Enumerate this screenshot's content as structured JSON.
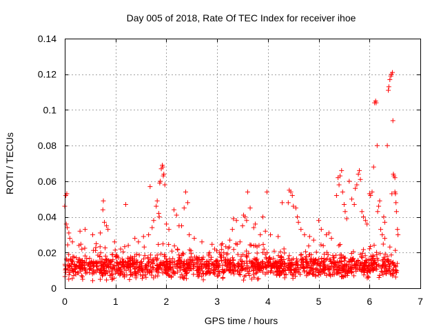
{
  "chart_data": {
    "type": "scatter",
    "title": "Day 005 of 2018, Rate Of TEC Index for receiver ihoe",
    "xlabel": "GPS time / hours",
    "ylabel": "ROTI / TECUs",
    "xlim": [
      0,
      7
    ],
    "ylim": [
      0,
      0.14
    ],
    "grid": true,
    "legend": "none",
    "marker": "plus",
    "color": "#ff0000",
    "x_ticks": [
      "0",
      "1",
      "2",
      "3",
      "4",
      "5",
      "6",
      "7"
    ],
    "y_ticks": [
      "0",
      "0.02",
      "0.04",
      "0.06",
      "0.08",
      "0.1",
      "0.12",
      "0.14"
    ],
    "series": [
      {
        "name": "ROTI",
        "points": [
          [
            0.0,
            0.046
          ],
          [
            0.02,
            0.052
          ],
          [
            0.04,
            0.053
          ],
          [
            0.03,
            0.036
          ],
          [
            0.05,
            0.034
          ],
          [
            0.08,
            0.031
          ],
          [
            0.1,
            0.028
          ],
          [
            0.15,
            0.026
          ],
          [
            0.28,
            0.024
          ],
          [
            0.3,
            0.032
          ],
          [
            0.4,
            0.033
          ],
          [
            0.55,
            0.03
          ],
          [
            0.62,
            0.025
          ],
          [
            0.7,
            0.031
          ],
          [
            0.75,
            0.044
          ],
          [
            0.76,
            0.049
          ],
          [
            0.78,
            0.037
          ],
          [
            0.82,
            0.035
          ],
          [
            0.85,
            0.033
          ],
          [
            0.98,
            0.026
          ],
          [
            1.1,
            0.022
          ],
          [
            1.2,
            0.047
          ],
          [
            1.25,
            0.024
          ],
          [
            1.38,
            0.028
          ],
          [
            1.45,
            0.026
          ],
          [
            1.55,
            0.029
          ],
          [
            1.65,
            0.03
          ],
          [
            1.68,
            0.057
          ],
          [
            1.72,
            0.034
          ],
          [
            1.75,
            0.038
          ],
          [
            1.8,
            0.046
          ],
          [
            1.82,
            0.049
          ],
          [
            1.85,
            0.042
          ],
          [
            1.86,
            0.04
          ],
          [
            1.87,
            0.059
          ],
          [
            1.88,
            0.06
          ],
          [
            1.9,
            0.067
          ],
          [
            1.92,
            0.069
          ],
          [
            1.93,
            0.068
          ],
          [
            1.94,
            0.063
          ],
          [
            1.95,
            0.064
          ],
          [
            1.97,
            0.058
          ],
          [
            2.0,
            0.036
          ],
          [
            2.05,
            0.033
          ],
          [
            2.15,
            0.044
          ],
          [
            2.2,
            0.041
          ],
          [
            2.25,
            0.035
          ],
          [
            2.3,
            0.035
          ],
          [
            2.35,
            0.045
          ],
          [
            2.38,
            0.054
          ],
          [
            2.42,
            0.048
          ],
          [
            2.45,
            0.03
          ],
          [
            2.55,
            0.028
          ],
          [
            2.7,
            0.026
          ],
          [
            2.85,
            0.02
          ],
          [
            2.95,
            0.022
          ],
          [
            3.05,
            0.02
          ],
          [
            3.1,
            0.025
          ],
          [
            3.25,
            0.027
          ],
          [
            3.3,
            0.033
          ],
          [
            3.32,
            0.039
          ],
          [
            3.38,
            0.038
          ],
          [
            3.45,
            0.026
          ],
          [
            3.5,
            0.035
          ],
          [
            3.52,
            0.041
          ],
          [
            3.55,
            0.04
          ],
          [
            3.58,
            0.038
          ],
          [
            3.6,
            0.054
          ],
          [
            3.65,
            0.045
          ],
          [
            3.72,
            0.034
          ],
          [
            3.75,
            0.036
          ],
          [
            3.85,
            0.03
          ],
          [
            3.9,
            0.04
          ],
          [
            3.95,
            0.032
          ],
          [
            3.98,
            0.054
          ],
          [
            4.05,
            0.03
          ],
          [
            4.2,
            0.029
          ],
          [
            4.28,
            0.048
          ],
          [
            4.4,
            0.048
          ],
          [
            4.42,
            0.055
          ],
          [
            4.45,
            0.054
          ],
          [
            4.48,
            0.052
          ],
          [
            4.5,
            0.046
          ],
          [
            4.55,
            0.045
          ],
          [
            4.58,
            0.04
          ],
          [
            4.6,
            0.037
          ],
          [
            4.65,
            0.033
          ],
          [
            4.72,
            0.03
          ],
          [
            4.82,
            0.029
          ],
          [
            4.9,
            0.027
          ],
          [
            5.0,
            0.038
          ],
          [
            5.05,
            0.033
          ],
          [
            5.15,
            0.03
          ],
          [
            5.2,
            0.031
          ],
          [
            5.25,
            0.028
          ],
          [
            5.35,
            0.052
          ],
          [
            5.38,
            0.062
          ],
          [
            5.4,
            0.058
          ],
          [
            5.42,
            0.063
          ],
          [
            5.45,
            0.066
          ],
          [
            5.47,
            0.054
          ],
          [
            5.5,
            0.047
          ],
          [
            5.52,
            0.043
          ],
          [
            5.55,
            0.039
          ],
          [
            5.6,
            0.06
          ],
          [
            5.65,
            0.05
          ],
          [
            5.7,
            0.047
          ],
          [
            5.72,
            0.056
          ],
          [
            5.75,
            0.058
          ],
          [
            5.78,
            0.064
          ],
          [
            5.8,
            0.066
          ],
          [
            5.82,
            0.061
          ],
          [
            5.85,
            0.043
          ],
          [
            5.88,
            0.04
          ],
          [
            5.92,
            0.038
          ],
          [
            5.95,
            0.036
          ],
          [
            6.0,
            0.053
          ],
          [
            6.02,
            0.052
          ],
          [
            6.05,
            0.054
          ],
          [
            6.08,
            0.068
          ],
          [
            6.1,
            0.104
          ],
          [
            6.12,
            0.105
          ],
          [
            6.13,
            0.104
          ],
          [
            6.15,
            0.08
          ],
          [
            6.16,
            0.043
          ],
          [
            6.18,
            0.046
          ],
          [
            6.2,
            0.049
          ],
          [
            6.22,
            0.033
          ],
          [
            6.25,
            0.03
          ],
          [
            6.3,
            0.028
          ],
          [
            6.35,
            0.08
          ],
          [
            6.37,
            0.111
          ],
          [
            6.38,
            0.113
          ],
          [
            6.4,
            0.117
          ],
          [
            6.42,
            0.119
          ],
          [
            6.43,
            0.12
          ],
          [
            6.45,
            0.121
          ],
          [
            6.46,
            0.094
          ],
          [
            6.47,
            0.064
          ],
          [
            6.48,
            0.063
          ],
          [
            6.5,
            0.054
          ],
          [
            6.51,
            0.053
          ],
          [
            6.52,
            0.048
          ],
          [
            6.53,
            0.043
          ],
          [
            6.55,
            0.033
          ],
          [
            6.56,
            0.03
          ],
          [
            6.5,
            0.062
          ],
          [
            6.44,
            0.053
          ],
          [
            6.3,
            0.037
          ],
          [
            6.28,
            0.04
          ]
        ],
        "baseline": {
          "x_start": 0.0,
          "x_end": 6.55,
          "count": 1500,
          "seed": 7,
          "y_min": 0.003,
          "y_typical": 0.012,
          "y_spread": 0.009,
          "y_upper": 0.025
        }
      }
    ]
  }
}
